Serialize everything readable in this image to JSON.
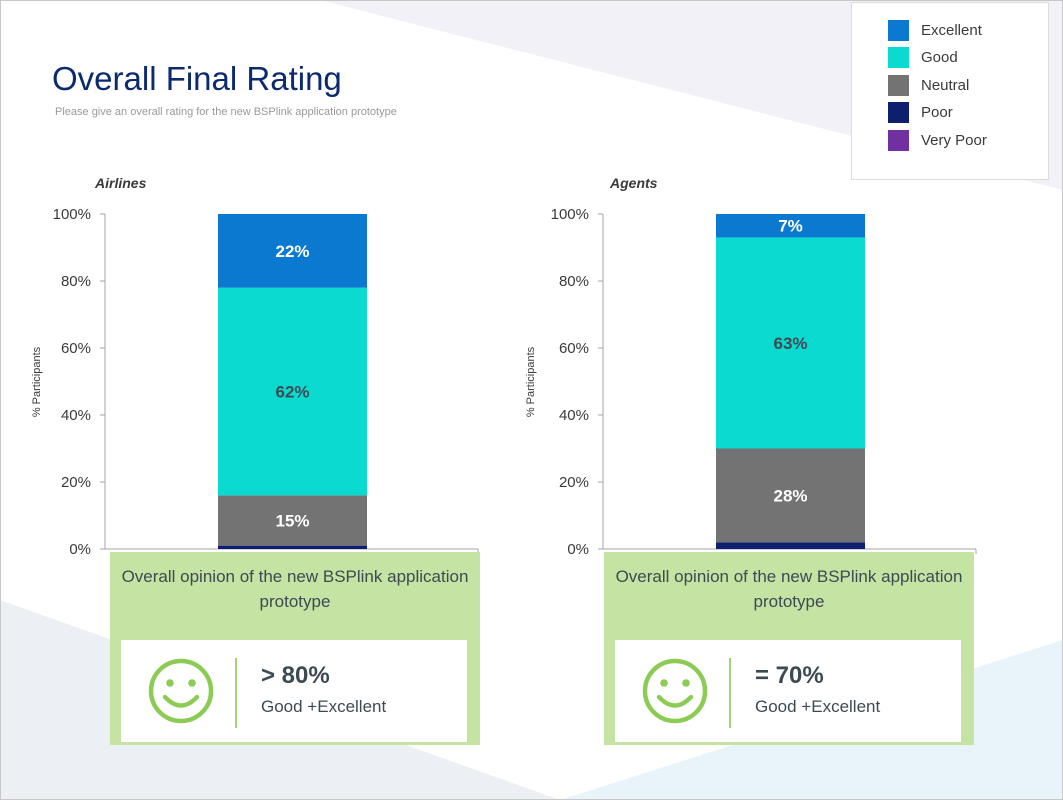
{
  "header": {
    "title": "Overall Final Rating",
    "subtitle": "Please give an overall rating for the new BSPlink application prototype"
  },
  "legend": [
    {
      "label": "Excellent",
      "color": "#0a79cf"
    },
    {
      "label": "Good",
      "color": "#0adad0"
    },
    {
      "label": "Neutral",
      "color": "#737373"
    },
    {
      "label": "Poor",
      "color": "#0d1f6e"
    },
    {
      "label": "Very Poor",
      "color": "#7030a0"
    }
  ],
  "chart_data": [
    {
      "type": "bar",
      "stacked": true,
      "title": "Airlines",
      "ylabel": "% Participants",
      "ylim": [
        0,
        100
      ],
      "yticks": [
        "0%",
        "20%",
        "40%",
        "60%",
        "80%",
        "100%"
      ],
      "series": [
        {
          "name": "Poor",
          "value": 1,
          "label": "",
          "color": "#0d1f6e",
          "label_color": "#ffffff"
        },
        {
          "name": "Neutral",
          "value": 15,
          "label": "15%",
          "color": "#737373",
          "label_color": "#ffffff"
        },
        {
          "name": "Good",
          "value": 62,
          "label": "62%",
          "color": "#0adad0",
          "label_color": "#3d4a52"
        },
        {
          "name": "Excellent",
          "value": 22,
          "label": "22%",
          "color": "#0a79cf",
          "label_color": "#ffffff"
        }
      ]
    },
    {
      "type": "bar",
      "stacked": true,
      "title": "Agents",
      "ylabel": "% Participants",
      "ylim": [
        0,
        100
      ],
      "yticks": [
        "0%",
        "20%",
        "40%",
        "60%",
        "80%",
        "100%"
      ],
      "series": [
        {
          "name": "Poor",
          "value": 2,
          "label": "",
          "color": "#0d1f6e",
          "label_color": "#ffffff"
        },
        {
          "name": "Neutral",
          "value": 28,
          "label": "28%",
          "color": "#737373",
          "label_color": "#ffffff"
        },
        {
          "name": "Good",
          "value": 63,
          "label": "63%",
          "color": "#0adad0",
          "label_color": "#3d4a52"
        },
        {
          "name": "Excellent",
          "value": 7,
          "label": "7%",
          "color": "#0a79cf",
          "label_color": "#ffffff"
        }
      ]
    }
  ],
  "summaries": [
    {
      "question": "Overall opinion of the new BSPlink application prototype",
      "value": "> 80%",
      "label": "Good +Excellent"
    },
    {
      "question": "Overall opinion of the new BSPlink application prototype",
      "value": "= 70%",
      "label": "Good +Excellent"
    }
  ]
}
